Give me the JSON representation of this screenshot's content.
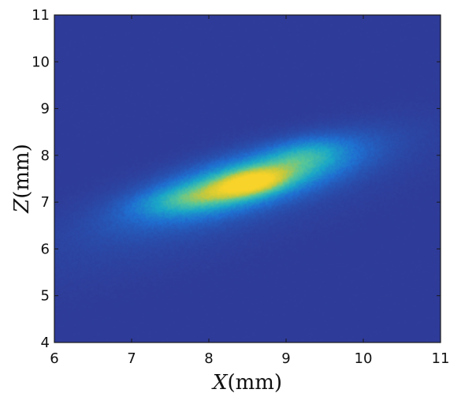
{
  "chart_data": {
    "type": "heatmap",
    "title": "",
    "xlabel": {
      "var": "X",
      "unit": "(mm)"
    },
    "ylabel": {
      "var": "Z",
      "unit": "(mm)"
    },
    "xlim": [
      6,
      11
    ],
    "ylim": [
      4,
      11
    ],
    "xticks": [
      6,
      7,
      8,
      9,
      10,
      11
    ],
    "yticks": [
      4,
      5,
      6,
      7,
      8,
      9,
      10,
      11
    ],
    "grid": false,
    "colorbar": false,
    "colormap": {
      "name": "parula",
      "stops": [
        "#2f3b98",
        "#1f6fd1",
        "#1aa7c8",
        "#55c69a",
        "#c8c93a",
        "#f8d329"
      ]
    },
    "background_level": 0.0,
    "peak": {
      "x": 8.5,
      "z": 7.4,
      "intensity": 1.0
    },
    "blobs": [
      {
        "x": 8.5,
        "z": 7.45,
        "sx": 0.95,
        "sz": 0.32,
        "angle_deg": 26,
        "amp": 0.55
      },
      {
        "x": 8.55,
        "z": 7.42,
        "sx": 0.32,
        "sz": 0.17,
        "angle_deg": 20,
        "amp": 0.55
      },
      {
        "x": 7.8,
        "z": 7.1,
        "sx": 0.45,
        "sz": 0.18,
        "angle_deg": 15,
        "amp": 0.22
      },
      {
        "x": 9.25,
        "z": 8.0,
        "sx": 0.35,
        "sz": 0.22,
        "angle_deg": 25,
        "amp": 0.18
      },
      {
        "x": 8.1,
        "z": 6.9,
        "sx": 1.8,
        "sz": 0.55,
        "angle_deg": 28,
        "amp": 0.06
      }
    ]
  }
}
